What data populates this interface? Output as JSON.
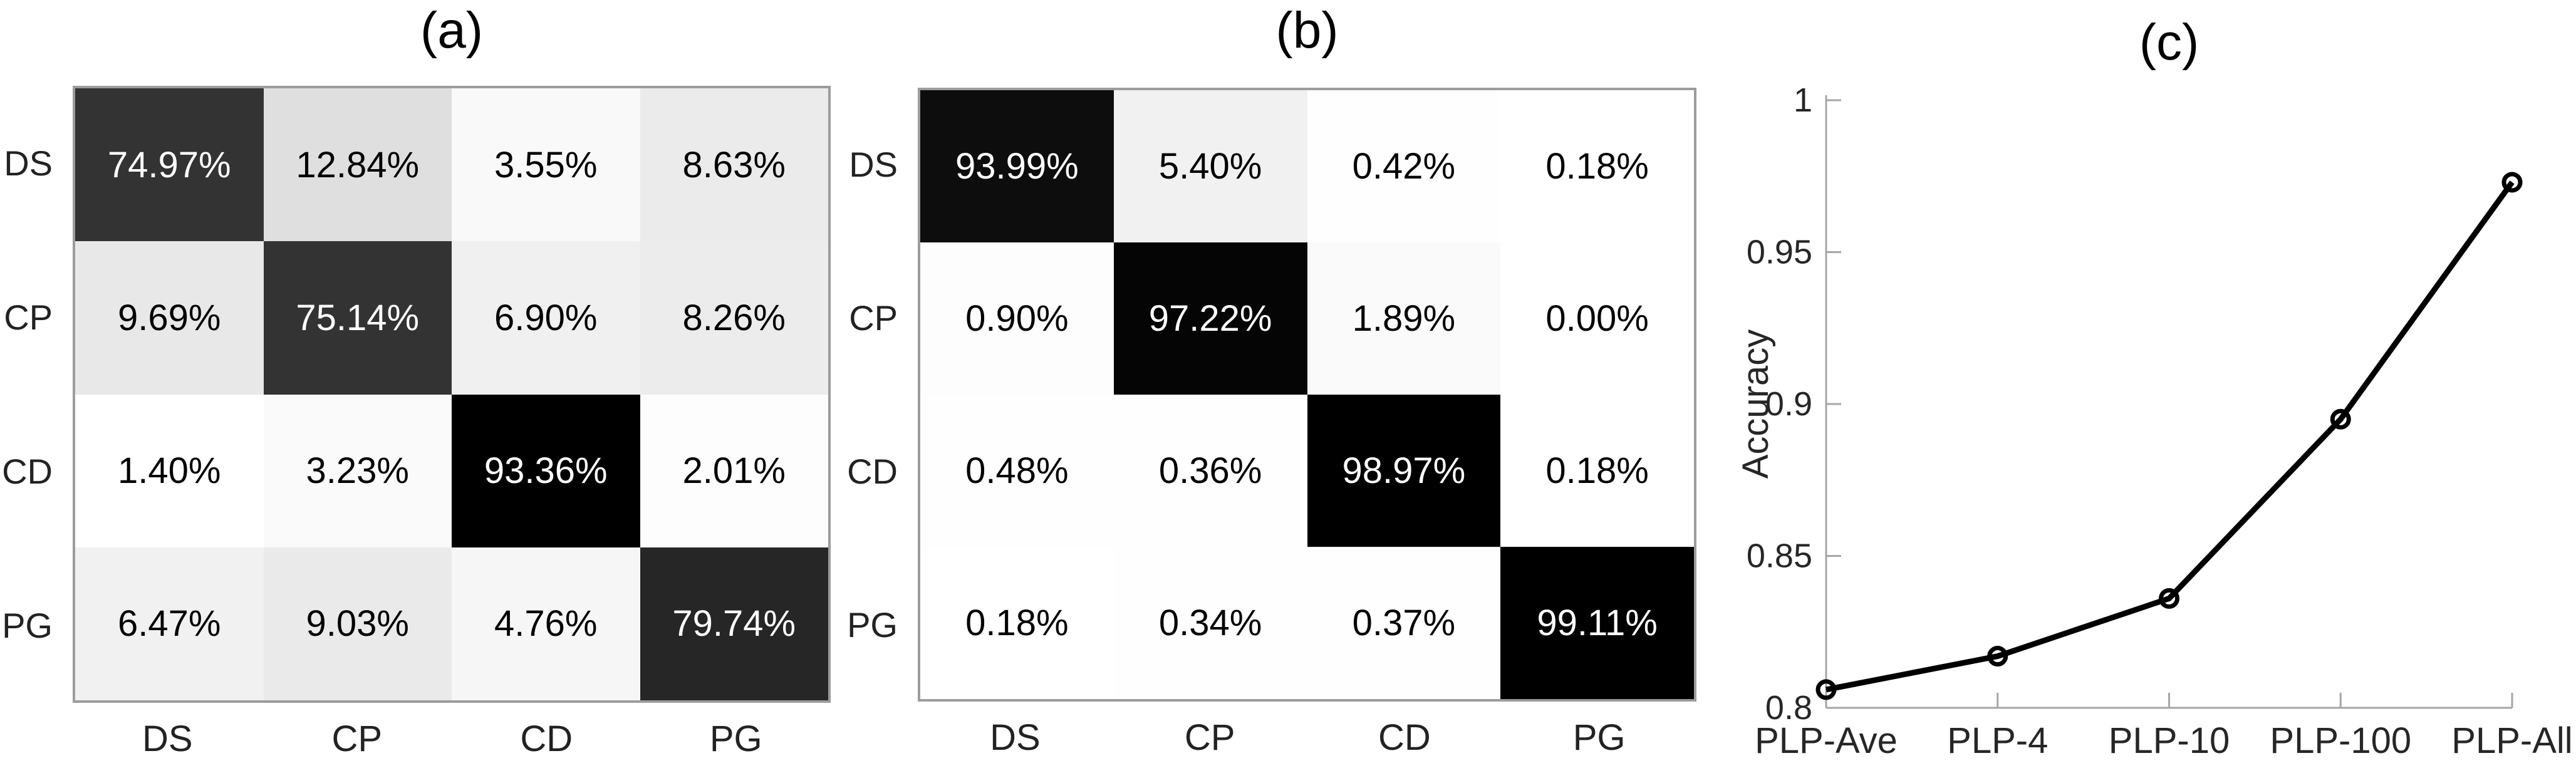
{
  "figure": {
    "background": "#ffffff",
    "text_color": "#000000",
    "axis_color": "#a6a6a6",
    "line_color": "#000000"
  },
  "chart_data": [
    {
      "type": "heatmap",
      "panel": "a",
      "title": "(a)",
      "row_labels": [
        "DS",
        "CP",
        "CD",
        "PG"
      ],
      "col_labels": [
        "DS",
        "CP",
        "CD",
        "PG"
      ],
      "unit": "%",
      "values": [
        [
          74.97,
          12.84,
          3.55,
          8.63
        ],
        [
          9.69,
          75.14,
          6.9,
          8.26
        ],
        [
          1.4,
          3.23,
          93.36,
          2.01
        ],
        [
          6.47,
          9.03,
          4.76,
          79.74
        ]
      ],
      "colormap": "white-to-black, scaled to data min..max",
      "value_format": "2-decimal percent"
    },
    {
      "type": "heatmap",
      "panel": "b",
      "title": "(b)",
      "row_labels": [
        "DS",
        "CP",
        "CD",
        "PG"
      ],
      "col_labels": [
        "DS",
        "CP",
        "CD",
        "PG"
      ],
      "unit": "%",
      "values": [
        [
          93.99,
          5.4,
          0.42,
          0.18
        ],
        [
          0.9,
          97.22,
          1.89,
          0.0
        ],
        [
          0.48,
          0.36,
          98.97,
          0.18
        ],
        [
          0.18,
          0.34,
          0.37,
          99.11
        ]
      ],
      "colormap": "white-to-black, scaled to data min..max",
      "value_format": "2-decimal percent"
    },
    {
      "type": "line",
      "panel": "c",
      "title": "(c)",
      "categories": [
        "PLP-Ave",
        "PLP-4",
        "PLP-10",
        "PLP-100",
        "PLP-All"
      ],
      "values": [
        0.806,
        0.817,
        0.836,
        0.895,
        0.973
      ],
      "xlabel": "",
      "ylabel": "Accuracy",
      "ylim": [
        0.8,
        1.0
      ],
      "yticks": [
        0.8,
        0.85,
        0.9,
        0.95,
        1
      ],
      "ytick_labels": [
        "0.8",
        "0.85",
        "0.9",
        "0.95",
        "1"
      ],
      "marker": "open-circle",
      "legend": "none",
      "grid": "off"
    }
  ]
}
